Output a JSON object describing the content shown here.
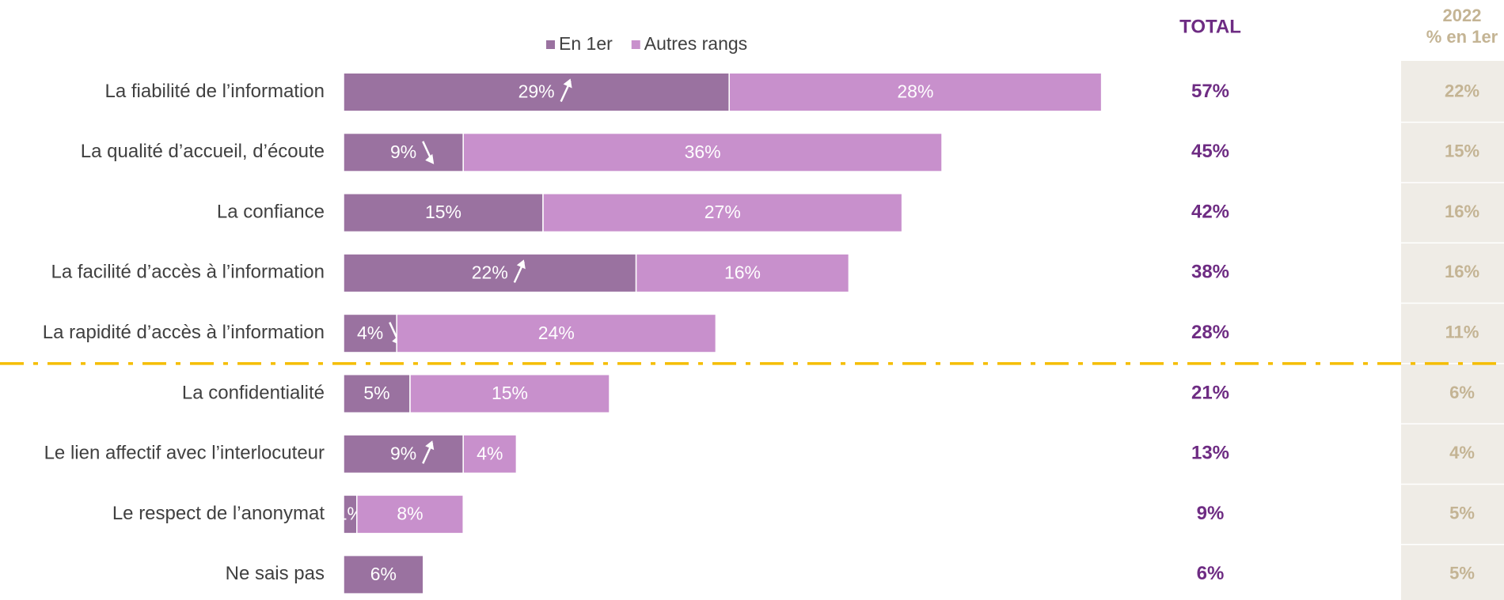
{
  "chart_data": {
    "type": "stacked-hbar",
    "categories": [
      "La fiabilité de l’information",
      "La qualité d’accueil, d’écoute",
      "La confiance",
      "La facilité d’accès à l’information",
      "La rapidité d’accès à l’information",
      "La confidentialité",
      "Le lien affectif avec l’interlocuteur",
      "Le respect de l’anonymat",
      "Ne sais pas"
    ],
    "series": [
      {
        "name": "En 1er",
        "color": "#9a72a0",
        "values": [
          29,
          9,
          15,
          22,
          4,
          5,
          9,
          1,
          6
        ],
        "value_labels": [
          "29%",
          "9%",
          "15%",
          "22%",
          "4%",
          "5%",
          "9%",
          "1%",
          "6%"
        ],
        "trend": [
          "up",
          "down",
          null,
          "up",
          "down",
          null,
          "up",
          null,
          null
        ]
      },
      {
        "name": "Autres rangs",
        "color": "#c890cc",
        "values": [
          28,
          36,
          27,
          16,
          24,
          15,
          4,
          8,
          null
        ],
        "value_labels": [
          "28%",
          "36%",
          "27%",
          "16%",
          "24%",
          "15%",
          "4%",
          "8%",
          null
        ]
      }
    ],
    "divider_after": 4,
    "columns": [
      {
        "title": "TOTAL",
        "values": [
          57,
          45,
          42,
          38,
          28,
          21,
          13,
          9,
          6
        ],
        "value_labels": [
          "57%",
          "45%",
          "42%",
          "38%",
          "28%",
          "21%",
          "13%",
          "9%",
          "6%"
        ]
      },
      {
        "title": "2022",
        "subtitle": "% en 1er",
        "values": [
          22,
          15,
          16,
          16,
          11,
          6,
          4,
          5,
          5
        ],
        "value_labels": [
          "22%",
          "15%",
          "16%",
          "16%",
          "11%",
          "6%",
          "4%",
          "5%",
          "5%"
        ]
      }
    ]
  }
}
